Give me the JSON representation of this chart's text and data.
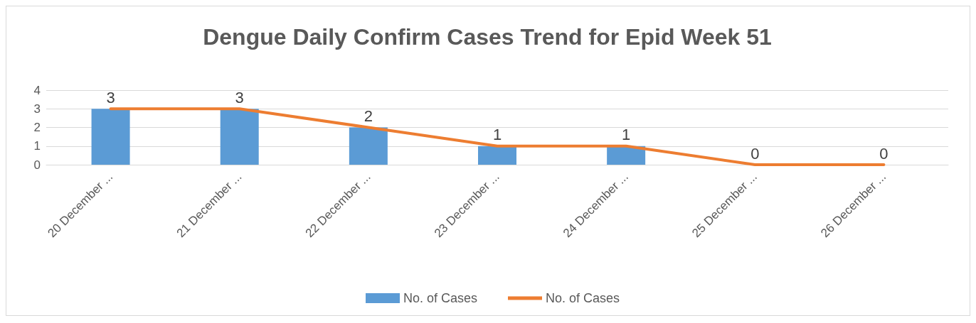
{
  "chart_data": {
    "type": "bar",
    "title": "Dengue Daily Confirm Cases Trend for Epid Week 51",
    "categories": [
      "20 December ...",
      "21 December ...",
      "22 December ...",
      "23 December ...",
      "24 December ...",
      "25 December ...",
      "26 December ..."
    ],
    "series": [
      {
        "name": "No. of Cases",
        "color": "#5b9bd5",
        "values": [
          3,
          3,
          2,
          1,
          1,
          0,
          0
        ]
      },
      {
        "name": "No. of Cases",
        "type": "line",
        "color": "#ed7d31",
        "marker": "none",
        "data_labels": true,
        "values": [
          3,
          3,
          2,
          1,
          1,
          0,
          0
        ]
      }
    ],
    "ylim": [
      0,
      4
    ],
    "yticks": [
      0,
      1,
      2,
      3,
      4
    ],
    "grid": "y",
    "legend": "bottom"
  }
}
